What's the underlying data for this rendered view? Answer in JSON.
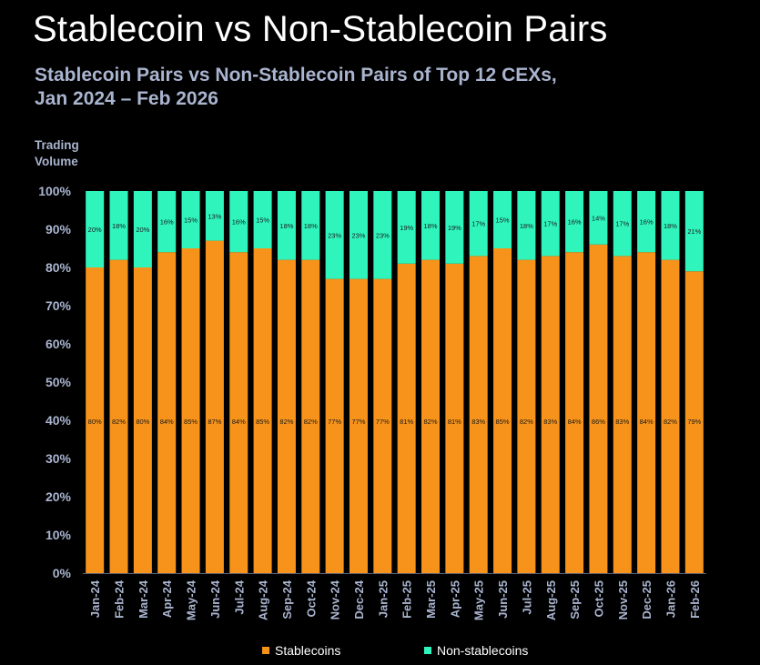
{
  "title": "Stablecoin vs Non-Stablecoin Pairs",
  "subtitle_line1": "Stablecoin Pairs vs Non-Stablecoin Pairs of Top 12 CEXs,",
  "subtitle_line2": "Jan 2024 – Feb 2026",
  "ylabel_line1": "Trading",
  "ylabel_line2": "Volume",
  "colors": {
    "stablecoins": "#f7931a",
    "non_stablecoins": "#2ff5bd",
    "axis_text": "#a9b4cf",
    "background": "#000000"
  },
  "chart_data": {
    "type": "bar",
    "stacked": true,
    "title": "Stablecoin vs Non-Stablecoin Pairs",
    "subtitle": "Stablecoin Pairs vs Non-Stablecoin Pairs of Top 12 CEXs, Jan 2024 – Feb 2026",
    "ylabel": "Trading Volume",
    "xlabel": "",
    "ylim": [
      0,
      100
    ],
    "yticks": [
      "0%",
      "10%",
      "20%",
      "30%",
      "40%",
      "50%",
      "60%",
      "70%",
      "80%",
      "90%",
      "100%"
    ],
    "grid": false,
    "legend_position": "bottom",
    "categories": [
      "Jan-24",
      "Feb-24",
      "Mar-24",
      "Apr-24",
      "May-24",
      "Jun-24",
      "Jul-24",
      "Aug-24",
      "Sep-24",
      "Oct-24",
      "Nov-24",
      "Dec-24",
      "Jan-25",
      "Feb-25",
      "Mar-25",
      "Apr-25",
      "May-25",
      "Jun-25",
      "Jul-25",
      "Aug-25",
      "Sep-25",
      "Oct-25",
      "Nov-25",
      "Dec-25",
      "Jan-26",
      "Feb-26"
    ],
    "series": [
      {
        "name": "Stablecoins",
        "values": [
          80,
          82,
          80,
          84,
          85,
          87,
          84,
          85,
          82,
          82,
          77,
          77,
          77,
          81,
          82,
          81,
          83,
          85,
          82,
          83,
          84,
          86,
          83,
          84,
          82,
          79
        ],
        "labels": [
          "80%",
          "82%",
          "80%",
          "84%",
          "85%",
          "87%",
          "84%",
          "85%",
          "82%",
          "82%",
          "77%",
          "77%",
          "77%",
          "81%",
          "82%",
          "81%",
          "83%",
          "85%",
          "82%",
          "83%",
          "84%",
          "86%",
          "83%",
          "84%",
          "82%",
          "79%"
        ]
      },
      {
        "name": "Non-stablecoins",
        "values": [
          20,
          18,
          20,
          16,
          15,
          13,
          16,
          15,
          18,
          18,
          23,
          23,
          23,
          19,
          18,
          19,
          17,
          15,
          18,
          17,
          16,
          14,
          17,
          16,
          18,
          21
        ],
        "labels": [
          "20%",
          "18%",
          "20%",
          "16%",
          "15%",
          "13%",
          "16%",
          "15%",
          "18%",
          "18%",
          "23%",
          "23%",
          "23%",
          "19%",
          "18%",
          "19%",
          "17%",
          "15%",
          "18%",
          "17%",
          "16%",
          "14%",
          "17%",
          "16%",
          "18%",
          "21%"
        ]
      }
    ]
  }
}
